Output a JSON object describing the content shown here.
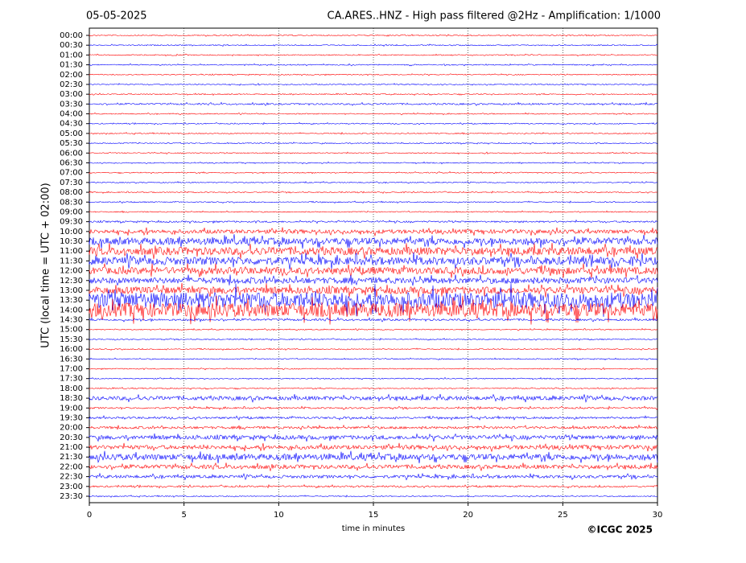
{
  "chart_data": {
    "type": "helicorder",
    "date": "05-05-2025",
    "title": "CA.ARES..HNZ - High pass filtered @2Hz - Amplification: 1/1000",
    "x_label": "time in minutes",
    "y_label": "UTC (local time = UTC + 02:00)",
    "copyright": "©ICGC 2025",
    "categories": [
      "00:00",
      "00:30",
      "01:00",
      "01:30",
      "02:00",
      "02:30",
      "03:00",
      "03:30",
      "04:00",
      "04:30",
      "05:00",
      "05:30",
      "06:00",
      "06:30",
      "07:00",
      "07:30",
      "08:00",
      "08:30",
      "09:00",
      "09:30",
      "10:00",
      "10:30",
      "11:00",
      "11:30",
      "12:00",
      "12:30",
      "13:00",
      "13:30",
      "14:00",
      "14:30",
      "15:00",
      "15:30",
      "16:00",
      "16:30",
      "17:00",
      "17:30",
      "18:00",
      "18:30",
      "19:00",
      "19:30",
      "20:00",
      "20:30",
      "21:00",
      "21:30",
      "22:00",
      "22:30",
      "23:00",
      "23:30"
    ],
    "amplitude": [
      0.05,
      0.05,
      0.05,
      0.05,
      0.05,
      0.05,
      0.05,
      0.08,
      0.05,
      0.05,
      0.05,
      0.05,
      0.05,
      0.05,
      0.05,
      0.05,
      0.05,
      0.05,
      0.05,
      0.08,
      0.2,
      0.35,
      0.4,
      0.4,
      0.35,
      0.3,
      0.35,
      0.8,
      0.7,
      0.1,
      0.05,
      0.05,
      0.05,
      0.05,
      0.05,
      0.05,
      0.05,
      0.2,
      0.08,
      0.1,
      0.12,
      0.2,
      0.2,
      0.3,
      0.2,
      0.15,
      0.08,
      0.05
    ],
    "colors": [
      "#ff0000",
      "#0000ff"
    ],
    "xlim": [
      0,
      30
    ],
    "xticks": [
      0,
      5,
      10,
      15,
      20,
      25,
      30
    ],
    "grid": true
  }
}
